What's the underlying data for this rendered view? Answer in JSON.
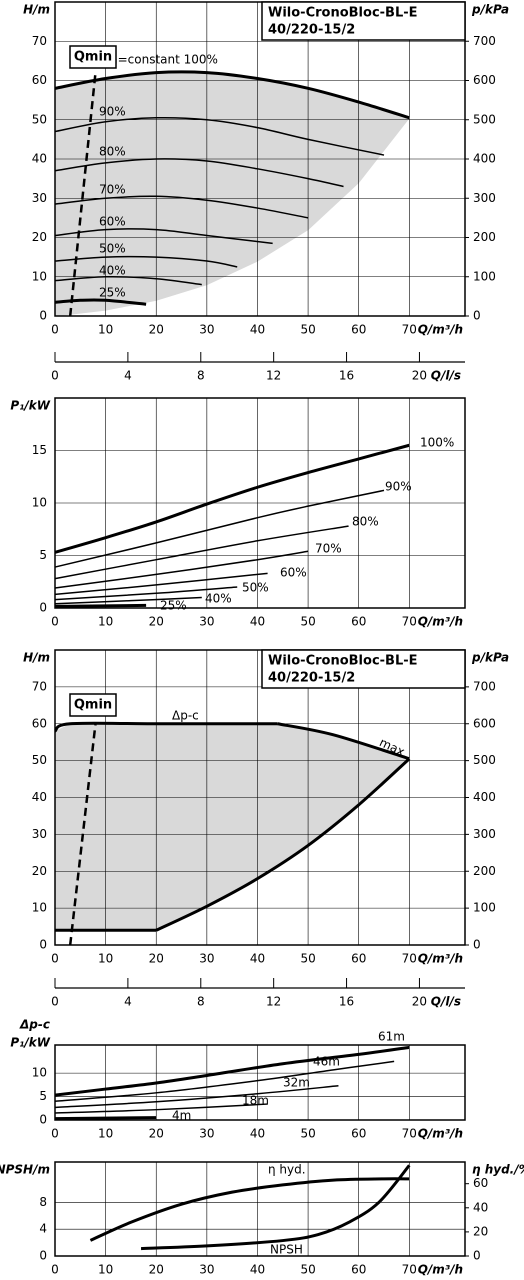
{
  "chart_data": [
    {
      "type": "line",
      "title": "Wilo-CronoBloc-BL-E",
      "subtitle": "40/220-15/2",
      "x_label": "Q/m³/h",
      "y_label": "H/m",
      "y2_label": "p/kPa",
      "xlim": [
        0,
        81
      ],
      "xticks": [
        0,
        10,
        20,
        30,
        40,
        50,
        60,
        70
      ],
      "ylim": [
        0,
        80
      ],
      "yticks": [
        0,
        10,
        20,
        30,
        40,
        50,
        60,
        70
      ],
      "y2lim": [
        0,
        800
      ],
      "y2ticks": [
        0,
        100,
        200,
        300,
        400,
        500,
        600,
        700
      ],
      "grid": true,
      "shade_color": "#d9d9d9",
      "qmin": {
        "label": "Qmin",
        "x": [
          3,
          8
        ],
        "values": [
          0,
          62
        ]
      },
      "envelope": {
        "x": [
          0,
          10,
          20,
          30,
          40,
          50,
          60,
          70
        ],
        "values": [
          0,
          1.5,
          4,
          8,
          14,
          22,
          34,
          50.5
        ]
      },
      "series": [
        {
          "name": "n=constant 100%",
          "color": "#000000",
          "x": [
            0,
            10,
            20,
            30,
            40,
            50,
            60,
            70
          ],
          "values": [
            58,
            60.5,
            62,
            62,
            60.5,
            58,
            54.5,
            50.5
          ]
        },
        {
          "name": "90%",
          "color": "#000000",
          "x": [
            0,
            10,
            20,
            30,
            40,
            50,
            65
          ],
          "values": [
            47,
            49.5,
            50.5,
            50,
            48,
            45,
            41
          ]
        },
        {
          "name": "80%",
          "color": "#000000",
          "x": [
            0,
            10,
            20,
            30,
            40,
            50,
            57
          ],
          "values": [
            37,
            39,
            40,
            39.5,
            37.5,
            35,
            33
          ]
        },
        {
          "name": "70%",
          "color": "#000000",
          "x": [
            0,
            10,
            20,
            30,
            40,
            50
          ],
          "values": [
            28.5,
            30,
            30.5,
            29.5,
            27.5,
            25
          ]
        },
        {
          "name": "60%",
          "color": "#000000",
          "x": [
            0,
            10,
            20,
            30,
            43
          ],
          "values": [
            20.5,
            22,
            22,
            20.5,
            18.5
          ]
        },
        {
          "name": "50%",
          "color": "#000000",
          "x": [
            0,
            10,
            20,
            30,
            36
          ],
          "values": [
            14,
            15,
            15,
            14,
            12.5
          ]
        },
        {
          "name": "40%",
          "color": "#000000",
          "x": [
            0,
            10,
            20,
            29
          ],
          "values": [
            9,
            10,
            9.5,
            8
          ]
        },
        {
          "name": "25%",
          "color": "#000000",
          "x": [
            0,
            5,
            10,
            18
          ],
          "values": [
            3.5,
            4,
            4,
            3
          ]
        }
      ]
    },
    {
      "type": "axis",
      "x_label": "Q/l/s",
      "xlim": [
        0,
        22.5
      ],
      "xticks": [
        0,
        4,
        8,
        12,
        16,
        20
      ]
    },
    {
      "type": "line",
      "x_label": "Q/m³/h",
      "y_label": "P₁/kW",
      "xlim": [
        0,
        81
      ],
      "xticks": [
        0,
        10,
        20,
        30,
        40,
        50,
        60,
        70
      ],
      "ylim": [
        0,
        20
      ],
      "yticks": [
        0,
        5,
        10,
        15
      ],
      "grid": true,
      "series": [
        {
          "name": "100%",
          "color": "#000000",
          "x": [
            0,
            10,
            20,
            30,
            40,
            50,
            60,
            70
          ],
          "values": [
            5.3,
            6.7,
            8.2,
            9.9,
            11.5,
            12.9,
            14.2,
            15.5
          ]
        },
        {
          "name": "90%",
          "color": "#000000",
          "x": [
            0,
            20,
            40,
            50,
            65
          ],
          "values": [
            3.9,
            6.2,
            8.6,
            9.7,
            11.2
          ]
        },
        {
          "name": "80%",
          "color": "#000000",
          "x": [
            0,
            20,
            40,
            58
          ],
          "values": [
            2.8,
            4.6,
            6.4,
            7.8
          ]
        },
        {
          "name": "70%",
          "color": "#000000",
          "x": [
            0,
            20,
            40,
            50
          ],
          "values": [
            1.9,
            3.2,
            4.6,
            5.4
          ]
        },
        {
          "name": "60%",
          "color": "#000000",
          "x": [
            0,
            20,
            42
          ],
          "values": [
            1.3,
            2.2,
            3.3
          ]
        },
        {
          "name": "50%",
          "color": "#000000",
          "x": [
            0,
            20,
            36
          ],
          "values": [
            0.8,
            1.4,
            2
          ]
        },
        {
          "name": "40%",
          "color": "#000000",
          "x": [
            0,
            15,
            29
          ],
          "values": [
            0.4,
            0.7,
            1
          ]
        },
        {
          "name": "25%",
          "color": "#000000",
          "x": [
            0,
            18
          ],
          "values": [
            0.15,
            0.25
          ]
        }
      ]
    },
    {
      "type": "line",
      "title": "Wilo-CronoBloc-BL-E",
      "subtitle": "40/220-15/2",
      "x_label": "Q/m³/h",
      "y_label": "H/m",
      "y2_label": "p/kPa",
      "xlim": [
        0,
        81
      ],
      "xticks": [
        0,
        10,
        20,
        30,
        40,
        50,
        60,
        70
      ],
      "ylim": [
        0,
        80
      ],
      "yticks": [
        0,
        10,
        20,
        30,
        40,
        50,
        60,
        70
      ],
      "y2lim": [
        0,
        800
      ],
      "y2ticks": [
        0,
        100,
        200,
        300,
        400,
        500,
        600,
        700
      ],
      "grid": true,
      "shade_color": "#d9d9d9",
      "qmin": {
        "label": "Qmin",
        "x": [
          3,
          8
        ],
        "values": [
          0,
          60
        ]
      },
      "series": [
        {
          "name": "Δp-c",
          "color": "#000000",
          "x": [
            0,
            3,
            20,
            44
          ],
          "values": [
            58,
            60,
            60,
            60
          ]
        },
        {
          "name": "max.",
          "color": "#000000",
          "x": [
            44,
            55,
            70
          ],
          "values": [
            60,
            57,
            50.5
          ]
        },
        {
          "color": "#000000",
          "x": [
            20,
            30,
            40,
            50,
            60,
            70
          ],
          "values": [
            4,
            10.5,
            18,
            27,
            38,
            50.5
          ]
        },
        {
          "color": "#000000",
          "x": [
            0,
            20
          ],
          "values": [
            4,
            4
          ]
        }
      ]
    },
    {
      "type": "axis",
      "x_label": "Q/l/s",
      "xlim": [
        0,
        22.5
      ],
      "xticks": [
        0,
        4,
        8,
        12,
        16,
        20
      ]
    },
    {
      "type": "line",
      "x_label": "Q/m³/h",
      "y_label": [
        "Δp-c",
        "P₁/kW"
      ],
      "xlim": [
        0,
        81
      ],
      "xticks": [
        0,
        10,
        20,
        30,
        40,
        50,
        60,
        70
      ],
      "ylim": [
        0,
        16
      ],
      "yticks": [
        0,
        5,
        10
      ],
      "grid": true,
      "series": [
        {
          "name": "61m",
          "color": "#000000",
          "x": [
            0,
            10,
            20,
            30,
            45,
            60,
            70
          ],
          "values": [
            5.3,
            6.6,
            7.9,
            9.5,
            12,
            14,
            15.5
          ]
        },
        {
          "name": "46m",
          "color": "#000000",
          "x": [
            0,
            20,
            40,
            55,
            67
          ],
          "values": [
            4,
            5.8,
            8.4,
            10.7,
            12.5
          ]
        },
        {
          "name": "32m",
          "color": "#000000",
          "x": [
            0,
            20,
            40,
            56
          ],
          "values": [
            2.7,
            3.9,
            5.6,
            7.3
          ]
        },
        {
          "name": "18m",
          "color": "#000000",
          "x": [
            0,
            20,
            42
          ],
          "values": [
            1.5,
            2.2,
            3.4
          ]
        },
        {
          "name": "4m",
          "color": "#000000",
          "x": [
            0,
            20
          ],
          "values": [
            0.3,
            0.5
          ]
        }
      ]
    },
    {
      "type": "line",
      "x_label": "Q/m³/h",
      "y_label": "NPSH/m",
      "y2_label": "η hyd./%",
      "xlim": [
        0,
        81
      ],
      "xticks": [
        0,
        10,
        20,
        30,
        40,
        50,
        60,
        70
      ],
      "ylim": [
        0,
        14
      ],
      "yticks": [
        0,
        4,
        8
      ],
      "y2lim": [
        0,
        78
      ],
      "y2ticks": [
        0,
        20,
        40,
        60
      ],
      "grid": true,
      "series": [
        {
          "name": "η hyd.",
          "color": "#000000",
          "axis": "y2",
          "x": [
            7,
            15,
            25,
            35,
            45,
            55,
            65,
            70
          ],
          "values": [
            13,
            28,
            43,
            53,
            59,
            63,
            64,
            64
          ]
        },
        {
          "name": "NPSH",
          "color": "#000000",
          "x": [
            17,
            30,
            45,
            52,
            58,
            64,
            70
          ],
          "values": [
            1.1,
            1.5,
            2.3,
            3.2,
            5,
            8,
            13.5
          ]
        }
      ]
    }
  ]
}
